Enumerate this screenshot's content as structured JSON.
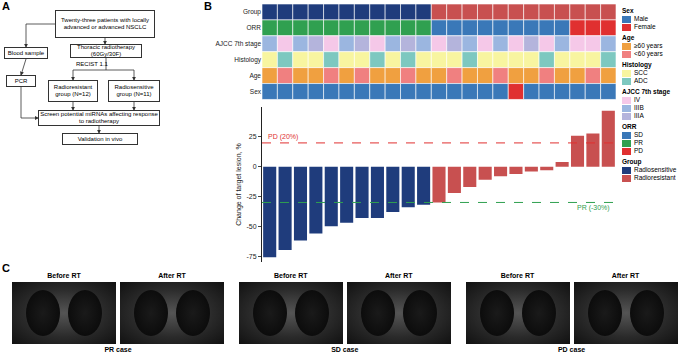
{
  "panel_a": {
    "label": "A",
    "nodes": [
      "Twenty-three patients with locally advanced or advanced NSCLC",
      "Blood sample",
      "Thoracic radiotherapy (60Gy/30F)",
      "PCR",
      "Radioresistant group (N=12)",
      "Radiosensitive group (N=11)",
      "Screen potential miRNAs affecting response to radiotherapy",
      "Validation in vivo"
    ],
    "edge_label": "RECIST 1.1"
  },
  "chart_data": {
    "type": "bar",
    "label": "B",
    "ylabel": "Change of target lesion, %",
    "categories": [
      null,
      null,
      null,
      null,
      null,
      null,
      null,
      null,
      null,
      null,
      null,
      null,
      null,
      null,
      null,
      null,
      null,
      null,
      null,
      null,
      null,
      null,
      null
    ],
    "values": [
      -76,
      -70,
      -62,
      -56,
      -50,
      -47,
      -43,
      -43,
      -38,
      -34,
      -32,
      -30,
      -22,
      -17,
      -11,
      -8,
      -6,
      -4,
      -3,
      4,
      26,
      28,
      47
    ],
    "ylim": [
      -80,
      50
    ],
    "yticks": [
      -75,
      -50,
      -25,
      0,
      25
    ],
    "grid": false,
    "tick_labels": "y",
    "reference_lines": [
      {
        "label": "PD (20%)",
        "value": 20,
        "color": "#e03030",
        "line_style": "dashed"
      },
      {
        "label": "PR (-30%)",
        "value": -30,
        "color": "#30a050",
        "line_style": "dashed"
      }
    ],
    "tracks": [
      {
        "name": "Group",
        "values": [
          "Radiosensitive",
          "Radiosensitive",
          "Radiosensitive",
          "Radiosensitive",
          "Radiosensitive",
          "Radiosensitive",
          "Radiosensitive",
          "Radiosensitive",
          "Radiosensitive",
          "Radiosensitive",
          "Radiosensitive",
          "Radioresistant",
          "Radioresistant",
          "Radioresistant",
          "Radioresistant",
          "Radioresistant",
          "Radioresistant",
          "Radioresistant",
          "Radioresistant",
          "Radioresistant",
          "Radioresistant",
          "Radioresistant",
          "Radioresistant"
        ]
      },
      {
        "name": "ORR",
        "values": [
          "PR",
          "PR",
          "PR",
          "PR",
          "PR",
          "PR",
          "PR",
          "PR",
          "PR",
          "PR",
          "PR",
          "SD",
          "SD",
          "SD",
          "SD",
          "SD",
          "SD",
          "SD",
          "SD",
          "SD",
          "PD",
          "PD",
          "PD"
        ]
      },
      {
        "name": "AJCC 7th stage",
        "values": [
          "IIIB",
          "IV",
          "IIIB",
          "IIIA",
          "IV",
          "IIIB",
          "IIIA",
          "IV",
          "IIIB",
          "IIIA",
          "IIIB",
          "IV",
          "IIIA",
          "IIIB",
          "IV",
          "IIIB",
          "IV",
          "IIIA",
          "IV",
          "IIIB",
          "IV",
          "IV",
          "IIIB"
        ]
      },
      {
        "name": "Histology",
        "values": [
          "SCC",
          "ADC",
          "SCC",
          "SCC",
          "ADC",
          "SCC",
          "SCC",
          "ADC",
          "SCC",
          "ADC",
          "SCC",
          "SCC",
          "SCC",
          "ADC",
          "SCC",
          "SCC",
          "SCC",
          "SCC",
          "ADC",
          "SCC",
          "SCC",
          "SCC",
          "ADC"
        ]
      },
      {
        "name": "Age",
        "values": [
          "≥60 years",
          "<60 years",
          "≥60 years",
          "≥60 years",
          "<60 years",
          "≥60 years",
          "<60 years",
          "≥60 years",
          "≥60 years",
          "<60 years",
          "≥60 years",
          "≥60 years",
          "<60 years",
          "≥60 years",
          "≥60 years",
          "<60 years",
          "≥60 years",
          "≥60 years",
          "<60 years",
          "≥60 years",
          "≥60 years",
          "<60 years",
          "≥60 years"
        ]
      },
      {
        "name": "Sex",
        "values": [
          "Male",
          "Male",
          "Male",
          "Male",
          "Male",
          "Male",
          "Male",
          "Male",
          "Male",
          "Male",
          "Male",
          "Male",
          "Male",
          "Male",
          "Male",
          "Male",
          "Female",
          "Male",
          "Male",
          "Male",
          "Male",
          "Male",
          "Male"
        ]
      }
    ],
    "keys": [
      {
        "title": "Sex",
        "items": [
          {
            "name": "Male",
            "color": "#3a78b8"
          },
          {
            "name": "Female",
            "color": "#e03030"
          }
        ]
      },
      {
        "title": "Age",
        "items": [
          {
            "name": "≥60 years",
            "color": "#f0a040"
          },
          {
            "name": "<60 years",
            "color": "#f08080"
          }
        ]
      },
      {
        "title": "Histology",
        "items": [
          {
            "name": "SCC",
            "color": "#f8f5a0"
          },
          {
            "name": "ADC",
            "color": "#7dc8c0"
          }
        ]
      },
      {
        "title": "AJCC 7th stage",
        "items": [
          {
            "name": "IV",
            "color": "#f5c8e8"
          },
          {
            "name": "IIIB",
            "color": "#9bb6e0"
          },
          {
            "name": "IIIA",
            "color": "#b4b4dc"
          }
        ]
      },
      {
        "title": "ORR",
        "items": [
          {
            "name": "SD",
            "color": "#3a78b8"
          },
          {
            "name": "PR",
            "color": "#30a050"
          },
          {
            "name": "PD",
            "color": "#e03030"
          }
        ]
      },
      {
        "title": "Group",
        "items": [
          {
            "name": "Radiosensitive",
            "color": "#1f3c7c"
          },
          {
            "name": "Radioresistant",
            "color": "#c85050"
          }
        ]
      }
    ]
  },
  "panel_c": {
    "label": "C",
    "cases": [
      {
        "before": "Before RT",
        "after": "After RT",
        "label": "PR case"
      },
      {
        "before": "Before RT",
        "after": "After RT",
        "label": "SD case"
      },
      {
        "before": "Before RT",
        "after": "After RT",
        "label": "PD case"
      }
    ]
  }
}
